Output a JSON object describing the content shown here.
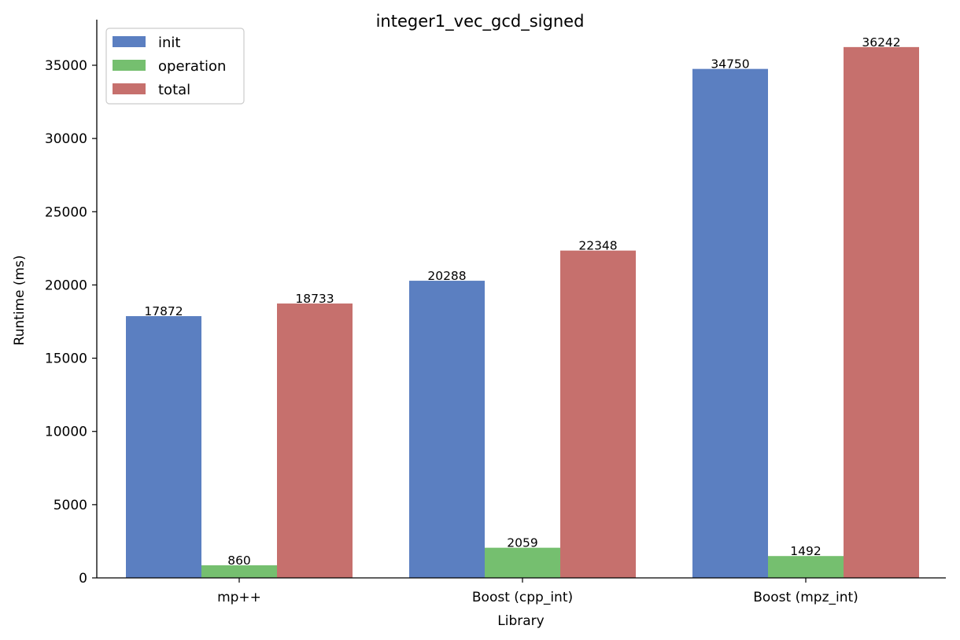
{
  "chart_data": {
    "type": "bar",
    "title": "integer1_vec_gcd_signed",
    "xlabel": "Library",
    "ylabel": "Runtime (ms)",
    "categories": [
      "mp++",
      "Boost (cpp_int)",
      "Boost (mpz_int)"
    ],
    "series": [
      {
        "name": "init",
        "values": [
          17872,
          20288,
          34750
        ],
        "color": "#5b7fc1"
      },
      {
        "name": "operation",
        "values": [
          860,
          2059,
          1492
        ],
        "color": "#75bf6f"
      },
      {
        "name": "total",
        "values": [
          18733,
          22348,
          36242
        ],
        "color": "#c6706d"
      }
    ],
    "ylim": [
      0,
      38000
    ],
    "yticks": [
      0,
      5000,
      10000,
      15000,
      20000,
      25000,
      30000,
      35000
    ],
    "legend_position": "top-left",
    "grid": false
  }
}
